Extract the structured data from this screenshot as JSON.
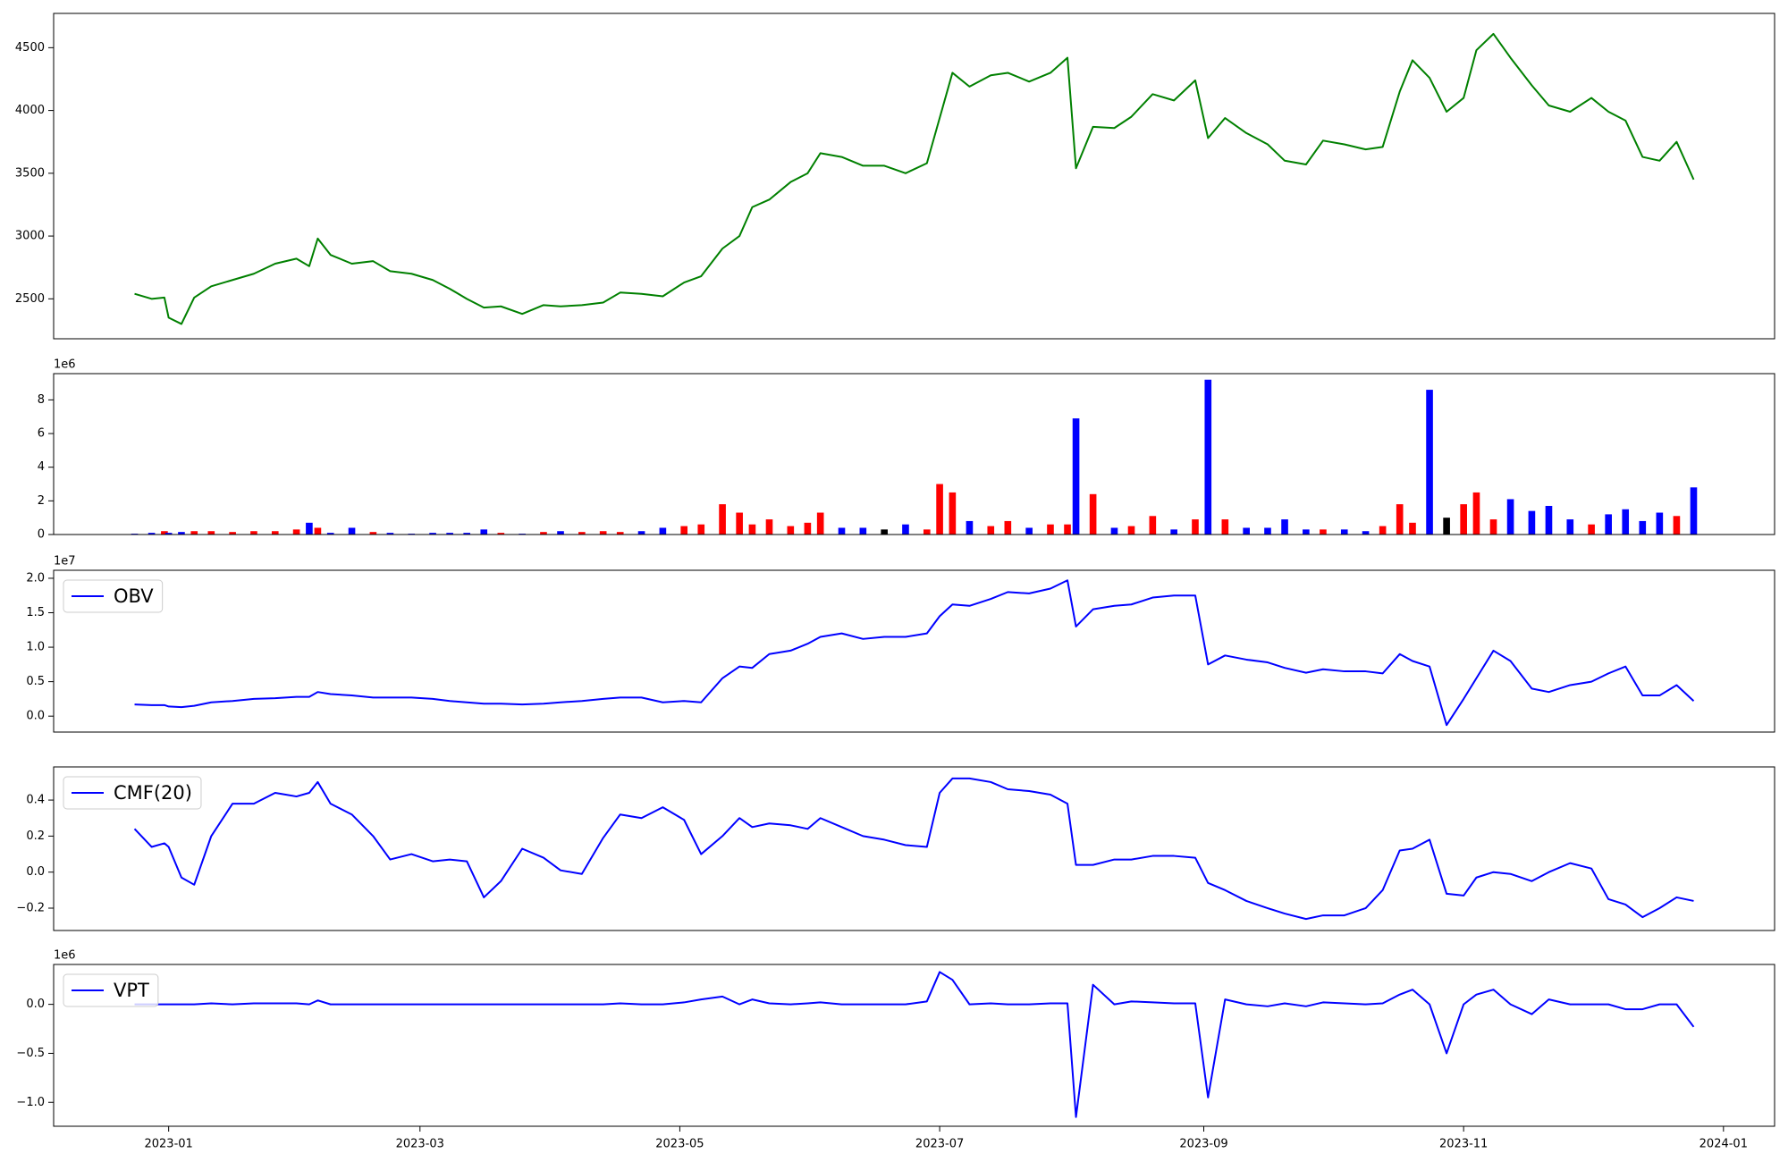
{
  "chart_data": [
    {
      "type": "line",
      "series": [
        {
          "color": "green",
          "values": [
            2540,
            2500,
            2510,
            2350,
            2300,
            2510,
            2600,
            2650,
            2700,
            2780,
            2820,
            2760,
            2980,
            2850,
            2780,
            2800,
            2720,
            2700,
            2650,
            2580,
            2500,
            2430,
            2440,
            2380,
            2450,
            2440,
            2450,
            2470,
            2550,
            2540,
            2520,
            2630,
            2680,
            2900,
            3000,
            3230,
            3290,
            3430,
            3500,
            3660,
            3630,
            3560,
            3560,
            3500,
            3580,
            3940,
            4300,
            4190,
            4280,
            4300,
            4230,
            4300,
            4420,
            3540,
            3870,
            3860,
            3950,
            4130,
            4080,
            4240,
            3780,
            3940,
            3820,
            3730,
            3600,
            3570,
            3760,
            3730,
            3690,
            3710,
            4150,
            4400,
            4260,
            3990,
            4100,
            4480,
            4610,
            4420,
            4200,
            4040,
            3990,
            4100,
            3990,
            3920,
            3630,
            3600,
            3750,
            3450
          ]
        }
      ],
      "ylim": [
        2182,
        4773
      ],
      "yticks": [
        2500,
        3000,
        3500,
        4000,
        4500
      ]
    },
    {
      "type": "bar",
      "values": [
        0.05,
        0.1,
        0.2,
        0.1,
        0.15,
        0.2,
        0.2,
        0.15,
        0.2,
        0.2,
        0.3,
        0.7,
        0.4,
        0.1,
        0.4,
        0.15,
        0.1,
        0.05,
        0.1,
        0.1,
        0.1,
        0.3,
        0.1,
        0.05,
        0.15,
        0.2,
        0.15,
        0.2,
        0.15,
        0.2,
        0.4,
        0.5,
        0.6,
        1.8,
        1.3,
        0.6,
        0.9,
        0.5,
        0.7,
        1.3,
        0.4,
        0.4,
        0.3,
        0.6,
        0.3,
        3.0,
        2.5,
        0.8,
        0.5,
        0.8,
        0.4,
        0.6,
        0.6,
        6.9,
        2.4,
        0.4,
        0.5,
        1.1,
        0.3,
        0.9,
        9.2,
        0.9,
        0.4,
        0.4,
        0.9,
        0.3,
        0.3,
        0.3,
        0.2,
        0.5,
        1.8,
        0.7,
        8.6,
        1.0,
        1.8,
        2.5,
        0.9,
        2.1,
        1.4,
        1.7,
        0.9,
        0.6,
        1.2,
        1.5,
        0.8,
        1.3,
        1.1,
        2.8
      ],
      "colors": [
        "blue",
        "blue",
        "red",
        "blue",
        "blue",
        "red",
        "red",
        "red",
        "red",
        "red",
        "red",
        "blue",
        "red",
        "blue",
        "blue",
        "red",
        "blue",
        "blue",
        "blue",
        "blue",
        "blue",
        "blue",
        "red",
        "blue",
        "red",
        "blue",
        "red",
        "red",
        "red",
        "blue",
        "blue",
        "red",
        "red",
        "red",
        "red",
        "red",
        "red",
        "red",
        "red",
        "red",
        "blue",
        "blue",
        "black",
        "blue",
        "red",
        "red",
        "red",
        "blue",
        "red",
        "red",
        "blue",
        "red",
        "red",
        "blue",
        "red",
        "blue",
        "red",
        "red",
        "blue",
        "red",
        "blue",
        "red",
        "blue",
        "blue",
        "blue",
        "blue",
        "red",
        "blue",
        "blue",
        "red",
        "red",
        "red",
        "blue",
        "black",
        "red",
        "red",
        "red",
        "blue",
        "blue",
        "blue",
        "blue",
        "red",
        "blue",
        "blue",
        "blue",
        "blue",
        "red",
        "blue"
      ],
      "ylim": [
        0,
        9.56
      ],
      "yticks": [
        0,
        2,
        4,
        6,
        8
      ],
      "y_offset_label": "1e6"
    },
    {
      "type": "line",
      "series": [
        {
          "name": "OBV",
          "color": "blue",
          "values": [
            0.17,
            0.16,
            0.16,
            0.14,
            0.13,
            0.15,
            0.2,
            0.22,
            0.25,
            0.26,
            0.28,
            0.28,
            0.35,
            0.32,
            0.3,
            0.27,
            0.27,
            0.27,
            0.25,
            0.22,
            0.2,
            0.18,
            0.18,
            0.17,
            0.18,
            0.2,
            0.22,
            0.25,
            0.27,
            0.27,
            0.2,
            0.22,
            0.2,
            0.55,
            0.72,
            0.7,
            0.9,
            0.95,
            1.05,
            1.15,
            1.2,
            1.12,
            1.15,
            1.15,
            1.2,
            1.45,
            1.62,
            1.6,
            1.7,
            1.8,
            1.78,
            1.85,
            1.97,
            1.3,
            1.55,
            1.6,
            1.62,
            1.72,
            1.75,
            1.75,
            0.75,
            0.88,
            0.82,
            0.78,
            0.7,
            0.63,
            0.68,
            0.65,
            0.65,
            0.62,
            0.9,
            0.8,
            0.72,
            -0.13,
            0.25,
            0.55,
            0.95,
            0.8,
            0.4,
            0.35,
            0.45,
            0.5,
            0.62,
            0.72,
            0.3,
            0.3,
            0.45,
            0.22
          ]
        }
      ],
      "ylim": [
        -0.231,
        2.116
      ],
      "yticks": [
        {
          "value": 0,
          "label": "0.0"
        },
        {
          "value": 0.5,
          "label": "0.5"
        },
        {
          "value": 1,
          "label": "1.0"
        },
        {
          "value": 1.5,
          "label": "1.5"
        },
        {
          "value": 2,
          "label": "2.0"
        }
      ],
      "y_offset_label": "1e7",
      "legend": "upper left"
    },
    {
      "type": "line",
      "series": [
        {
          "name": "CMF(20)",
          "color": "blue",
          "values": [
            0.24,
            0.14,
            0.16,
            0.14,
            -0.03,
            -0.07,
            0.2,
            0.38,
            0.38,
            0.44,
            0.42,
            0.44,
            0.5,
            0.38,
            0.32,
            0.2,
            0.07,
            0.1,
            0.06,
            0.07,
            0.06,
            -0.14,
            -0.05,
            0.13,
            0.08,
            0.01,
            -0.01,
            0.19,
            0.32,
            0.3,
            0.36,
            0.29,
            0.1,
            0.2,
            0.3,
            0.25,
            0.27,
            0.26,
            0.24,
            0.3,
            0.25,
            0.2,
            0.18,
            0.15,
            0.14,
            0.44,
            0.52,
            0.52,
            0.5,
            0.46,
            0.45,
            0.43,
            0.38,
            0.04,
            0.04,
            0.07,
            0.07,
            0.09,
            0.09,
            0.08,
            -0.06,
            -0.1,
            -0.16,
            -0.2,
            -0.23,
            -0.26,
            -0.24,
            -0.24,
            -0.2,
            -0.1,
            0.12,
            0.13,
            0.18,
            -0.12,
            -0.13,
            -0.03,
            0,
            -0.01,
            -0.05,
            0,
            0.05,
            0.02,
            -0.15,
            -0.18,
            -0.25,
            -0.2,
            -0.14,
            -0.16
          ]
        }
      ],
      "ylim": [
        -0.324,
        0.584
      ],
      "yticks": [
        {
          "value": -0.2,
          "label": "−0.2"
        },
        {
          "value": 0,
          "label": "0.0"
        },
        0.2,
        0.4
      ],
      "legend": "upper left"
    },
    {
      "type": "line",
      "series": [
        {
          "name": "VPT",
          "color": "blue",
          "values": [
            0,
            0,
            0,
            0,
            0,
            0,
            0.01,
            0,
            0.01,
            0.01,
            0.01,
            0,
            0.04,
            0,
            0,
            0,
            0,
            0,
            0,
            0,
            0,
            0,
            0,
            0,
            0,
            0,
            0,
            0,
            0.01,
            0,
            0,
            0.02,
            0.05,
            0.08,
            0,
            0.05,
            0.01,
            0,
            0.01,
            0.02,
            0,
            0,
            0,
            0,
            0.03,
            0.33,
            0.25,
            0,
            0.01,
            0,
            0,
            0.01,
            0.01,
            -1.15,
            0.2,
            0,
            0.03,
            0.02,
            0.01,
            0.01,
            -0.95,
            0.05,
            0,
            -0.02,
            0.01,
            -0.02,
            0.02,
            0.01,
            0,
            0.01,
            0.1,
            0.15,
            0,
            -0.5,
            0,
            0.1,
            0.15,
            0,
            -0.1,
            0.05,
            0,
            0,
            0,
            -0.05,
            -0.05,
            0,
            0,
            -0.23
          ]
        }
      ],
      "ylim": [
        -1.244,
        0.407
      ],
      "yticks": [
        {
          "value": -1,
          "label": "−1.0"
        },
        {
          "value": -0.5,
          "label": "−0.5"
        },
        {
          "value": 0,
          "label": "0.0"
        }
      ],
      "y_offset_label": "1e6",
      "legend": "upper left",
      "x": [
        -8,
        -4,
        -1,
        0,
        3,
        6,
        10,
        15,
        20,
        25,
        30,
        33,
        35,
        38,
        43,
        48,
        52,
        57,
        62,
        66,
        70,
        74,
        78,
        83,
        88,
        92,
        97,
        102,
        106,
        111,
        116,
        121,
        125,
        130,
        134,
        137,
        141,
        146,
        150,
        153,
        158,
        163,
        168,
        173,
        178,
        181,
        184,
        188,
        193,
        197,
        202,
        207,
        211,
        213,
        217,
        222,
        226,
        231,
        236,
        241,
        244,
        248,
        253,
        258,
        262,
        267,
        271,
        276,
        281,
        285,
        289,
        292,
        296,
        300,
        304,
        307,
        311,
        315,
        320,
        324,
        329,
        334,
        338,
        342,
        346,
        350,
        354,
        358
      ],
      "xlim": [
        -27,
        377
      ],
      "xticks": [
        {
          "value": 0,
          "label": "2023-01"
        },
        {
          "value": 59,
          "label": "2023-03"
        },
        {
          "value": 120,
          "label": "2023-05"
        },
        {
          "value": 181,
          "label": "2023-07"
        },
        {
          "value": 243,
          "label": "2023-09"
        },
        {
          "value": 304,
          "label": "2023-11"
        },
        {
          "value": 365,
          "label": "2024-01"
        }
      ]
    }
  ]
}
